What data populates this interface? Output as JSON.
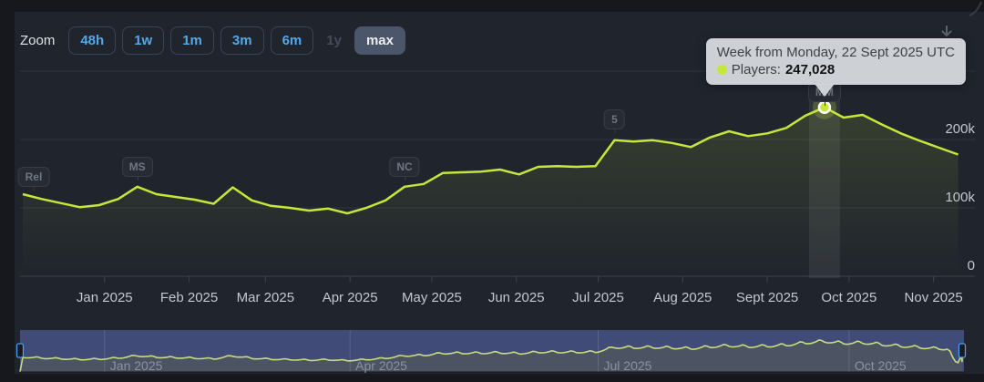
{
  "colors": {
    "accent_line": "#c5e73b",
    "button_blue": "#55a8e8",
    "navigator_mask": "#414b77",
    "navigator_area": "#4c5363",
    "navigator_line": "#c9dc7d",
    "handle_border": "#4e9de8",
    "tooltip_bg": "#d3d6da",
    "panel_bg": "#20242d",
    "page_bg": "#17181d"
  },
  "zoom_controls": {
    "label": "Zoom",
    "buttons": [
      {
        "label": "48h",
        "state": "default"
      },
      {
        "label": "1w",
        "state": "default"
      },
      {
        "label": "1m",
        "state": "default"
      },
      {
        "label": "3m",
        "state": "default"
      },
      {
        "label": "6m",
        "state": "default"
      },
      {
        "label": "1y",
        "state": "disabled"
      },
      {
        "label": "max",
        "state": "selected"
      }
    ]
  },
  "tooltip": {
    "title": "Week from Monday, 22 Sept 2025 UTC",
    "series_label": "Players:",
    "value": "247,028"
  },
  "chart_data": {
    "type": "line",
    "x_axis_type": "datetime",
    "series": [
      {
        "name": "Players",
        "color": "#c5e73b",
        "week_start_dates": [
          "2024-12-02",
          "2024-12-09",
          "2024-12-16",
          "2024-12-23",
          "2024-12-30",
          "2025-01-06",
          "2025-01-13",
          "2025-01-20",
          "2025-01-27",
          "2025-02-03",
          "2025-02-10",
          "2025-02-17",
          "2025-02-24",
          "2025-03-03",
          "2025-03-10",
          "2025-03-17",
          "2025-03-24",
          "2025-03-31",
          "2025-04-07",
          "2025-04-14",
          "2025-04-21",
          "2025-04-28",
          "2025-05-05",
          "2025-05-12",
          "2025-05-19",
          "2025-05-26",
          "2025-06-02",
          "2025-06-09",
          "2025-06-16",
          "2025-06-23",
          "2025-06-30",
          "2025-07-07",
          "2025-07-14",
          "2025-07-21",
          "2025-07-28",
          "2025-08-04",
          "2025-08-11",
          "2025-08-18",
          "2025-08-25",
          "2025-09-01",
          "2025-09-08",
          "2025-09-15",
          "2025-09-22",
          "2025-09-29",
          "2025-10-06",
          "2025-10-13",
          "2025-10-20",
          "2025-10-27",
          "2025-11-03",
          "2025-11-10"
        ],
        "values": [
          120000,
          113000,
          107000,
          101000,
          104000,
          113000,
          131000,
          120000,
          116000,
          112000,
          106000,
          130000,
          111000,
          103000,
          100000,
          96000,
          99000,
          92000,
          100000,
          111000,
          131000,
          135000,
          151000,
          152000,
          153000,
          156000,
          149000,
          160000,
          161000,
          160000,
          161000,
          199000,
          197000,
          199000,
          195000,
          189000,
          203000,
          212000,
          205000,
          209000,
          217000,
          235000,
          247028,
          232000,
          236000,
          222000,
          209000,
          198000,
          188000,
          178000
        ]
      }
    ],
    "yticks": [
      {
        "label": "0",
        "value": 0
      },
      {
        "label": "100k",
        "value": 100000
      },
      {
        "label": "200k",
        "value": 200000
      }
    ],
    "ylim": [
      0,
      300000
    ],
    "grid": true,
    "xticks": [
      {
        "label": "Jan 2025",
        "date": "2025-01-01"
      },
      {
        "label": "Feb 2025",
        "date": "2025-02-01"
      },
      {
        "label": "Mar 2025",
        "date": "2025-03-01"
      },
      {
        "label": "Apr 2025",
        "date": "2025-04-01"
      },
      {
        "label": "May 2025",
        "date": "2025-05-01"
      },
      {
        "label": "Jun 2025",
        "date": "2025-06-01"
      },
      {
        "label": "Jul 2025",
        "date": "2025-07-01"
      },
      {
        "label": "Aug 2025",
        "date": "2025-08-01"
      },
      {
        "label": "Sept 2025",
        "date": "2025-09-01"
      },
      {
        "label": "Oct 2025",
        "date": "2025-10-01"
      },
      {
        "label": "Nov 2025",
        "date": "2025-11-01"
      }
    ],
    "flags": [
      {
        "label": "Rel",
        "date": "2024-12-06"
      },
      {
        "label": "MS",
        "date": "2025-01-13"
      },
      {
        "label": "NC",
        "date": "2025-04-21"
      },
      {
        "label": "5",
        "date": "2025-07-07"
      },
      {
        "label": "MM",
        "date": "2025-09-22"
      }
    ],
    "highlight_point": {
      "date": "2025-09-22",
      "players": 247028
    }
  },
  "navigator": {
    "labels": [
      {
        "label": "Jan 2025",
        "date": "2025-01-01"
      },
      {
        "label": "Apr 2025",
        "date": "2025-04-01"
      },
      {
        "label": "Jul 2025",
        "date": "2025-07-01"
      },
      {
        "label": "Oct 2025",
        "date": "2025-10-01"
      }
    ]
  }
}
